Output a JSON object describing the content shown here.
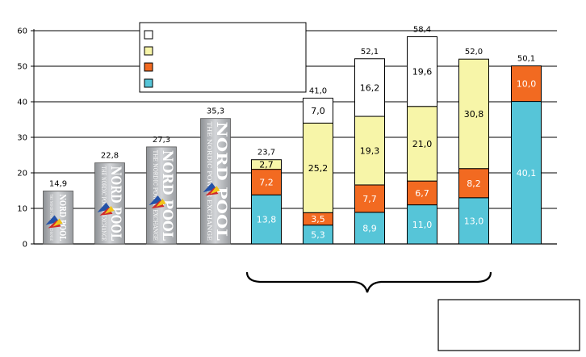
{
  "chart_data": {
    "type": "bar",
    "stacked": true,
    "title": "",
    "xlabel": "",
    "ylabel": "",
    "ylim": [
      0,
      60
    ],
    "yticks": [
      0,
      10,
      20,
      30,
      40,
      50,
      60
    ],
    "grid": true,
    "legend": {
      "placement": "top",
      "entries": [
        {
          "name": "",
          "color": "#ffffff"
        },
        {
          "name": "",
          "color": "#f7f5a8"
        },
        {
          "name": "",
          "color": "#f26a21"
        },
        {
          "name": "",
          "color": "#56c5d8"
        }
      ]
    },
    "logo_bars": [
      {
        "index": 0,
        "total": 14.9,
        "total_label": "14,9"
      },
      {
        "index": 1,
        "total": 22.8,
        "total_label": "22,8"
      },
      {
        "index": 2,
        "total": 27.3,
        "total_label": "27,3"
      },
      {
        "index": 3,
        "total": 35.3,
        "total_label": "35,3"
      }
    ],
    "logo_text": {
      "main": "NORD POOL",
      "sub": "THE NORDIC POWER EXCHANGE"
    },
    "stacked_bars": [
      {
        "index": 4,
        "total_label": "23,7",
        "segments": [
          {
            "series": 3,
            "value": 13.8,
            "label": "13,8"
          },
          {
            "series": 2,
            "value": 7.2,
            "label": "7,2"
          },
          {
            "series": 1,
            "value": 2.7,
            "label": "2,7"
          }
        ]
      },
      {
        "index": 5,
        "total_label": "41,0",
        "segments": [
          {
            "series": 3,
            "value": 5.3,
            "label": "5,3"
          },
          {
            "series": 2,
            "value": 3.5,
            "label": "3,5"
          },
          {
            "series": 1,
            "value": 25.2,
            "label": "25,2"
          },
          {
            "series": 0,
            "value": 7.0,
            "label": "7,0"
          }
        ]
      },
      {
        "index": 6,
        "total_label": "52,1",
        "segments": [
          {
            "series": 3,
            "value": 8.9,
            "label": "8,9"
          },
          {
            "series": 2,
            "value": 7.7,
            "label": "7,7"
          },
          {
            "series": 1,
            "value": 19.3,
            "label": "19,3"
          },
          {
            "series": 0,
            "value": 16.2,
            "label": "16,2"
          }
        ]
      },
      {
        "index": 7,
        "total_label": "58,4",
        "segments": [
          {
            "series": 3,
            "value": 11.0,
            "label": "11,0"
          },
          {
            "series": 2,
            "value": 6.7,
            "label": "6,7"
          },
          {
            "series": 1,
            "value": 21.0,
            "label": "21,0"
          },
          {
            "series": 0,
            "value": 19.6,
            "label": "19,6"
          }
        ]
      },
      {
        "index": 8,
        "total_label": "52,0",
        "segments": [
          {
            "series": 3,
            "value": 13.0,
            "label": "13,0"
          },
          {
            "series": 2,
            "value": 8.2,
            "label": "8,2"
          },
          {
            "series": 1,
            "value": 30.8,
            "label": "30,8"
          }
        ]
      },
      {
        "index": 9,
        "total_label": "50,1",
        "segments": [
          {
            "series": 3,
            "value": 40.1,
            "label": "40,1"
          },
          {
            "series": 2,
            "value": 10.0,
            "label": "10,0"
          }
        ]
      }
    ]
  }
}
